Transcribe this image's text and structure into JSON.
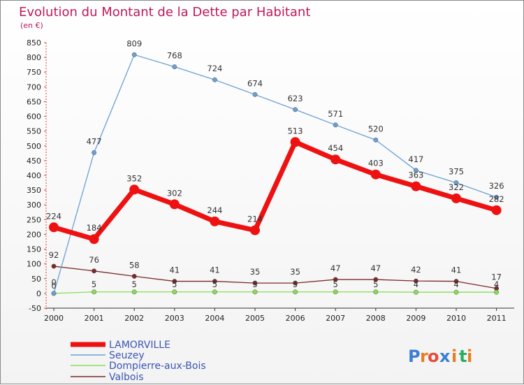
{
  "chart_data": {
    "type": "line",
    "title": "Evolution du Montant de la Dette par Habitant",
    "subtitle": "(en €)",
    "x": [
      "2000",
      "2001",
      "2002",
      "2003",
      "2004",
      "2005",
      "2006",
      "2007",
      "2008",
      "2009",
      "2010",
      "2011"
    ],
    "y_ticks": [
      -50,
      0,
      50,
      100,
      150,
      200,
      250,
      300,
      350,
      400,
      450,
      500,
      550,
      600,
      650,
      700,
      750,
      800,
      850
    ],
    "ylim": [
      -50,
      850
    ],
    "grid": false,
    "legend_position": "bottom-left",
    "series": [
      {
        "name": "LAMORVILLE",
        "color": "#ee1111",
        "values": [
          224,
          184,
          352,
          302,
          244,
          214,
          513,
          454,
          403,
          363,
          322,
          282
        ]
      },
      {
        "name": "Seuzey",
        "color": "#6a9fd4",
        "values": [
          0,
          477,
          809,
          768,
          724,
          674,
          623,
          571,
          520,
          417,
          375,
          326
        ]
      },
      {
        "name": "Dompierre-aux-Bois",
        "color": "#88dd55",
        "values": [
          0,
          5,
          5,
          5,
          5,
          5,
          5,
          5,
          5,
          4,
          4,
          4
        ]
      },
      {
        "name": "Valbois",
        "color": "#7a2a2a",
        "values": [
          92,
          76,
          58,
          41,
          41,
          35,
          35,
          47,
          47,
          42,
          41,
          17
        ]
      }
    ]
  },
  "brand": {
    "letters": [
      "P",
      "r",
      "o",
      "x",
      "i",
      "t",
      "i"
    ],
    "colors": [
      "#3a7fd5",
      "#e67e22",
      "#e74c3c",
      "#3a7fd5",
      "#e67e22",
      "#27ae60",
      "#e67e22"
    ]
  }
}
